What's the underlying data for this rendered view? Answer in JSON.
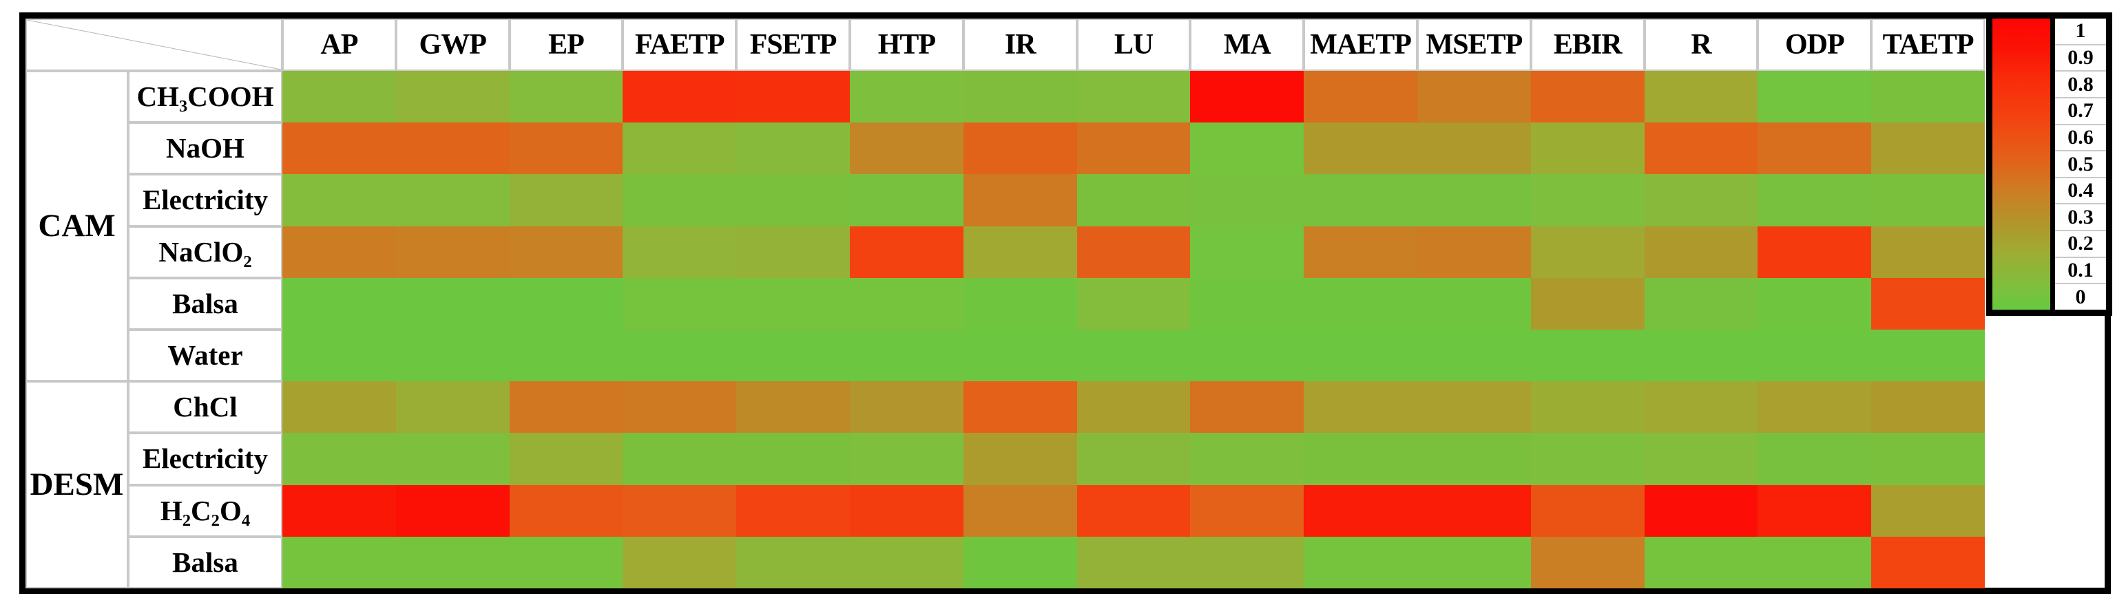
{
  "colors": {
    "background": "#ffffff",
    "frame_border": "#000000",
    "grid_line": "#c9c9c9",
    "diagonal_line": "#b4b4b4"
  },
  "chart_data": {
    "type": "heatmap",
    "title": "",
    "columns": [
      "AP",
      "GWP",
      "EP",
      "FAETP",
      "FSETP",
      "HTP",
      "IR",
      "LU",
      "MA",
      "MAETP",
      "MSETP",
      "EBIR",
      "R",
      "ODP",
      "TAETP"
    ],
    "row_groups": [
      {
        "name": "CAM",
        "row_count": 6
      },
      {
        "name": "DESM",
        "row_count": 4
      }
    ],
    "rows": [
      {
        "group": "CAM",
        "label": "CH₃COOH",
        "values": [
          0.12,
          0.15,
          0.1,
          0.78,
          0.77,
          0.08,
          0.09,
          0.1,
          0.95,
          0.46,
          0.41,
          0.5,
          0.21,
          0.04,
          0.07
        ]
      },
      {
        "group": "CAM",
        "label": "NaOH",
        "values": [
          0.5,
          0.5,
          0.48,
          0.13,
          0.11,
          0.37,
          0.51,
          0.45,
          0.05,
          0.28,
          0.28,
          0.19,
          0.52,
          0.46,
          0.26
        ]
      },
      {
        "group": "CAM",
        "label": "Electricity",
        "values": [
          0.1,
          0.1,
          0.16,
          0.07,
          0.07,
          0.06,
          0.42,
          0.07,
          0.06,
          0.06,
          0.06,
          0.08,
          0.12,
          0.06,
          0.07
        ]
      },
      {
        "group": "CAM",
        "label": "NaClO₂",
        "values": [
          0.41,
          0.4,
          0.39,
          0.15,
          0.16,
          0.67,
          0.21,
          0.53,
          0.04,
          0.4,
          0.41,
          0.21,
          0.28,
          0.7,
          0.27
        ]
      },
      {
        "group": "CAM",
        "label": "Balsa",
        "values": [
          0.02,
          0.02,
          0.02,
          0.05,
          0.05,
          0.05,
          0.03,
          0.1,
          0.03,
          0.03,
          0.03,
          0.28,
          0.06,
          0.03,
          0.63
        ]
      },
      {
        "group": "CAM",
        "label": "Water",
        "values": [
          0.02,
          0.02,
          0.02,
          0.02,
          0.02,
          0.02,
          0.02,
          0.02,
          0.02,
          0.02,
          0.02,
          0.02,
          0.02,
          0.02,
          0.02
        ]
      },
      {
        "group": "DESM",
        "label": "ChCl",
        "values": [
          0.24,
          0.18,
          0.43,
          0.42,
          0.35,
          0.3,
          0.52,
          0.26,
          0.45,
          0.25,
          0.25,
          0.19,
          0.21,
          0.25,
          0.28
        ]
      },
      {
        "group": "DESM",
        "label": "Electricity",
        "values": [
          0.08,
          0.08,
          0.17,
          0.07,
          0.07,
          0.08,
          0.27,
          0.11,
          0.08,
          0.07,
          0.07,
          0.08,
          0.1,
          0.06,
          0.07
        ]
      },
      {
        "group": "DESM",
        "label": "H₂C₂O₄",
        "values": [
          0.88,
          0.92,
          0.57,
          0.55,
          0.66,
          0.69,
          0.4,
          0.67,
          0.52,
          0.86,
          0.86,
          0.58,
          0.94,
          0.84,
          0.26
        ]
      },
      {
        "group": "DESM",
        "label": "Balsa",
        "values": [
          0.05,
          0.05,
          0.05,
          0.2,
          0.13,
          0.13,
          0.03,
          0.16,
          0.16,
          0.05,
          0.05,
          0.4,
          0.05,
          0.05,
          0.65
        ]
      }
    ],
    "value_range": [
      0,
      1
    ],
    "legend_labels": [
      "1",
      "0.9",
      "0.8",
      "0.7",
      "0.6",
      "0.5",
      "0.4",
      "0.3",
      "0.2",
      "0.1",
      "0"
    ],
    "legend_position": "top-right",
    "colorscale": [
      {
        "v": 0.0,
        "c": "#67C940"
      },
      {
        "v": 0.1,
        "c": "#84BC3C"
      },
      {
        "v": 0.2,
        "c": "#9FAB33"
      },
      {
        "v": 0.3,
        "c": "#B2952C"
      },
      {
        "v": 0.4,
        "c": "#CA7F24"
      },
      {
        "v": 0.5,
        "c": "#E0651B"
      },
      {
        "v": 0.6,
        "c": "#EE4F13"
      },
      {
        "v": 0.7,
        "c": "#F53B0E"
      },
      {
        "v": 0.8,
        "c": "#F92A0A"
      },
      {
        "v": 0.9,
        "c": "#FB1205"
      },
      {
        "v": 1.0,
        "c": "#FE0505"
      }
    ]
  }
}
